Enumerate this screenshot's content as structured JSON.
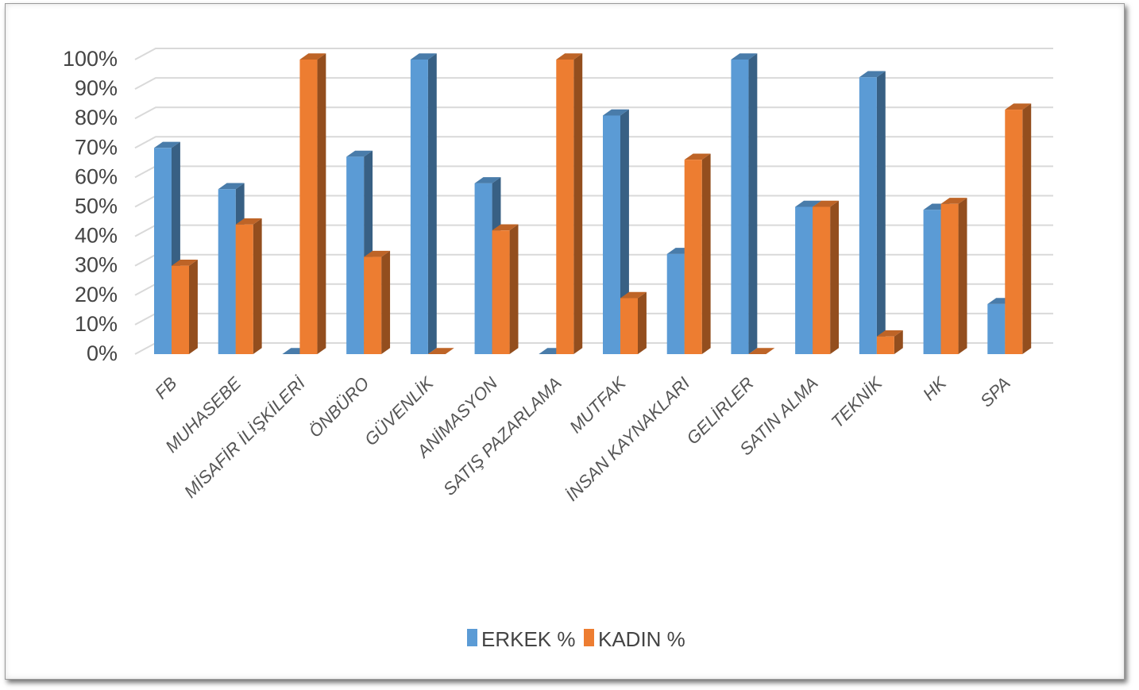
{
  "chart_data": {
    "type": "bar",
    "title": "",
    "xlabel": "",
    "ylabel": "",
    "ylim": [
      0,
      100
    ],
    "y_ticks": [
      "0%",
      "10%",
      "20%",
      "30%",
      "40%",
      "50%",
      "60%",
      "70%",
      "80%",
      "90%",
      "100%"
    ],
    "categories": [
      "FB",
      "MUHASEBE",
      "MİSAFİR  İLİŞKİLERİ",
      "ÖNBÜRO",
      "GÜVENLİK",
      "ANİMASYON",
      "SATIŞ PAZARLAMA",
      "MUTFAK",
      "İNSAN KAYNAKLARI",
      "GELİRLER",
      "SATIN ALMA",
      "TEKNİK",
      "HK",
      "SPA"
    ],
    "series": [
      {
        "name": "ERKEK %",
        "color": "#5b9bd5",
        "values": [
          70,
          56,
          0,
          67,
          100,
          58,
          0,
          81,
          34,
          100,
          50,
          94,
          49,
          17
        ]
      },
      {
        "name": "KADIN %",
        "color": "#ed7d31",
        "values": [
          30,
          44,
          100,
          33,
          0,
          42,
          100,
          19,
          66,
          0,
          50,
          6,
          51,
          83
        ]
      }
    ],
    "grid": true,
    "legend_position": "bottom",
    "style": "3d-clustered-column"
  }
}
